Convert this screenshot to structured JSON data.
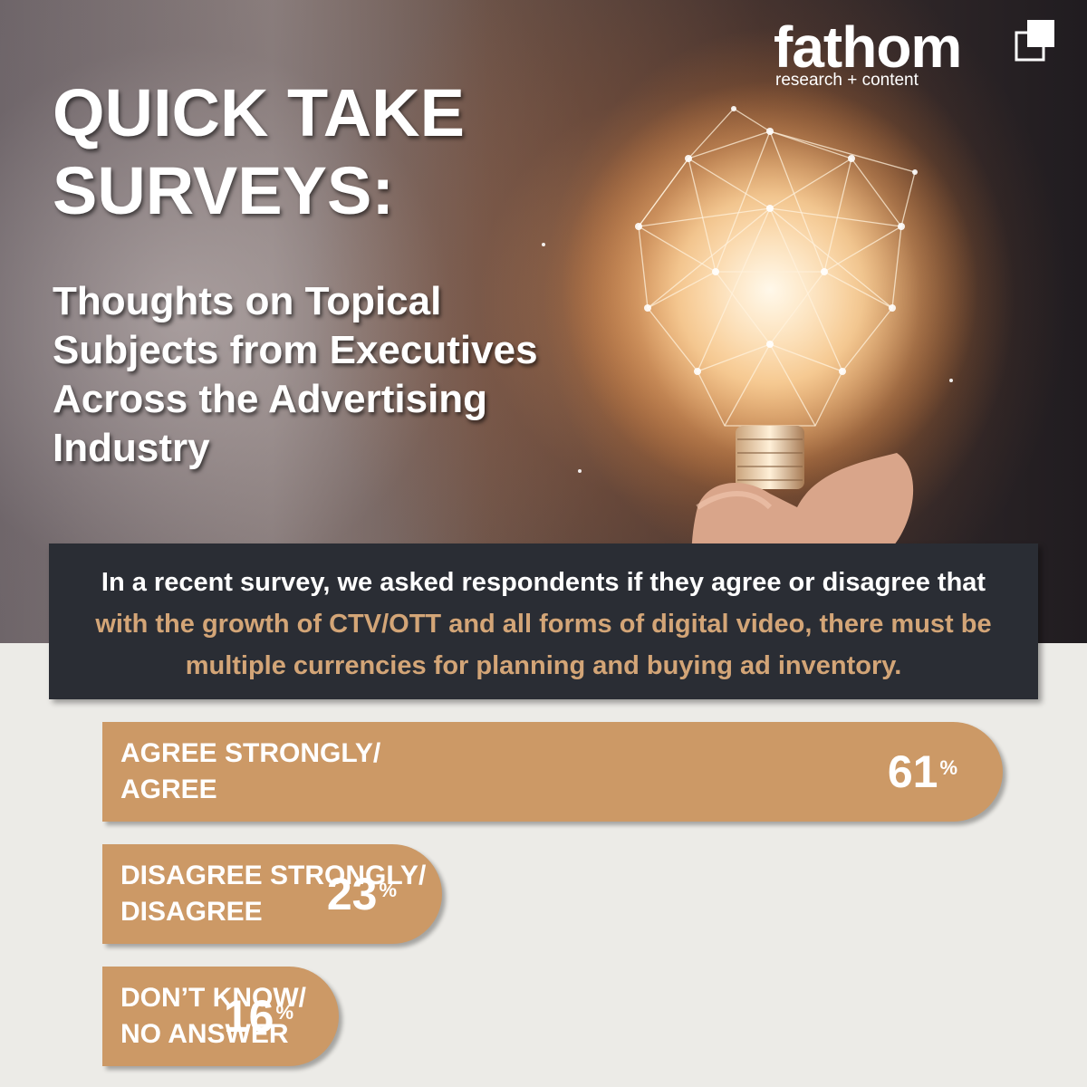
{
  "brand": {
    "name": "fathom",
    "tagline": "research + content"
  },
  "header": {
    "title": "QUICK TAKE SURVEYS:",
    "subtitle": "Thoughts on Topical Subjects from Executives Across the Advertising Industry"
  },
  "question": {
    "intro": "In a recent survey, we asked respondents if they agree or disagree that ",
    "highlight": "with the growth of CTV/OTT and all forms of digital video, there must be multiple currencies for planning and buying ad inventory."
  },
  "colors": {
    "bar": "#cc9966",
    "highlight": "#d3a577",
    "panel": "#2a2d34",
    "background": "#ecebe7"
  },
  "chart_data": {
    "type": "bar",
    "orientation": "horizontal",
    "unit": "%",
    "categories": [
      "AGREE STRONGLY/\nAGREE",
      "DISAGREE STRONGLY/\nDISAGREE",
      "DON’T KNOW/\nNO ANSWER"
    ],
    "values": [
      61,
      23,
      16
    ],
    "value_labels": [
      "61",
      "23",
      "16"
    ]
  }
}
